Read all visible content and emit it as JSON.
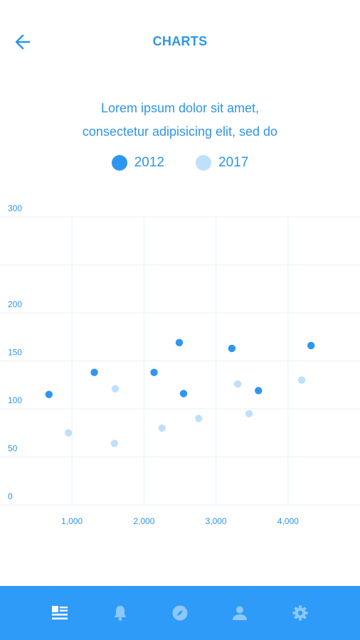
{
  "header": {
    "title": "CHARTS"
  },
  "description": {
    "line1": "Lorem ipsum dolor sit amet,",
    "line2": "consectetur adipisicing elit, sed do"
  },
  "colors": {
    "accent": "#2f95e9",
    "series_2012": "#2e96f0",
    "series_2017": "#bfe0fb",
    "grid": "#edf5fd",
    "tab_bar": "#2f9bf9"
  },
  "chart_data": {
    "type": "scatter",
    "title": "",
    "xlabel": "",
    "ylabel": "",
    "xlim": [
      0,
      5000
    ],
    "ylim": [
      0,
      300
    ],
    "x_ticks": [
      1000,
      2000,
      3000,
      4000
    ],
    "x_tick_labels": [
      "1,000",
      "2,000",
      "3,000",
      "4,000"
    ],
    "y_ticks": [
      0,
      50,
      100,
      150,
      200,
      300
    ],
    "y_tick_labels": [
      "0",
      "50",
      "100",
      "150",
      "200",
      "300"
    ],
    "grid": true,
    "legend_position": "top-center",
    "series": [
      {
        "name": "2012",
        "color": "#2e96f0",
        "points": [
          {
            "x": 680,
            "y": 115
          },
          {
            "x": 1310,
            "y": 138
          },
          {
            "x": 2140,
            "y": 138
          },
          {
            "x": 2490,
            "y": 169
          },
          {
            "x": 2550,
            "y": 116
          },
          {
            "x": 3220,
            "y": 163
          },
          {
            "x": 3590,
            "y": 119
          },
          {
            "x": 4320,
            "y": 166
          }
        ]
      },
      {
        "name": "2017",
        "color": "#bfe0fb",
        "points": [
          {
            "x": 950,
            "y": 75
          },
          {
            "x": 1600,
            "y": 121
          },
          {
            "x": 1590,
            "y": 64
          },
          {
            "x": 2250,
            "y": 80
          },
          {
            "x": 2760,
            "y": 90
          },
          {
            "x": 3300,
            "y": 126
          },
          {
            "x": 3460,
            "y": 95
          },
          {
            "x": 4190,
            "y": 130
          }
        ]
      }
    ]
  },
  "tabs": [
    {
      "name": "news-feed-icon",
      "active": true
    },
    {
      "name": "bell-icon",
      "active": false
    },
    {
      "name": "compass-icon",
      "active": false
    },
    {
      "name": "user-icon",
      "active": false
    },
    {
      "name": "gear-icon",
      "active": false
    }
  ]
}
